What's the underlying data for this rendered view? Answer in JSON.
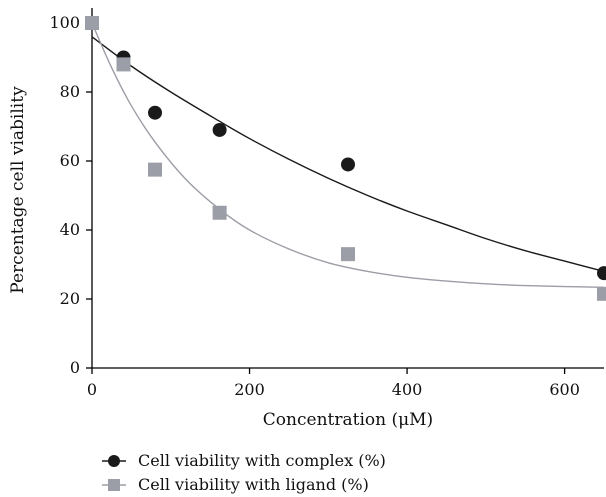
{
  "chart_data": {
    "type": "scatter",
    "title": "",
    "xlabel": "Concentration (μM)",
    "ylabel": "Percentage cell viability",
    "xlim": [
      0,
      650
    ],
    "ylim": [
      0,
      100
    ],
    "x_ticks": [
      "0",
      "200",
      "400",
      "600"
    ],
    "y_ticks": [
      "0",
      "20",
      "40",
      "60",
      "80",
      "100"
    ],
    "grid": false,
    "legend_position": "bottom-left",
    "series": [
      {
        "name": "Cell viability with complex (%)",
        "marker": "circle",
        "color": "#1a1a1a",
        "fit_color": "#1a1a1a",
        "points": [
          [
            0,
            100
          ],
          [
            40,
            90
          ],
          [
            80,
            74
          ],
          [
            162,
            69
          ],
          [
            325,
            59
          ],
          [
            650,
            27.5
          ]
        ],
        "fit": [
          [
            0,
            96
          ],
          [
            50,
            87.5
          ],
          [
            100,
            80
          ],
          [
            162,
            71.5
          ],
          [
            200,
            66.5
          ],
          [
            250,
            60.5
          ],
          [
            300,
            55
          ],
          [
            350,
            50
          ],
          [
            400,
            45.5
          ],
          [
            450,
            41.5
          ],
          [
            500,
            37.5
          ],
          [
            550,
            34
          ],
          [
            600,
            31
          ],
          [
            650,
            28
          ]
        ]
      },
      {
        "name": "Cell viability with ligand (%)",
        "marker": "square",
        "color": "#9b9ea6",
        "fit_color": "#9b9ea6",
        "points": [
          [
            0,
            100
          ],
          [
            40,
            88
          ],
          [
            80,
            57.5
          ],
          [
            162,
            45
          ],
          [
            325,
            33
          ],
          [
            650,
            21.5
          ]
        ],
        "fit": [
          [
            0,
            100
          ],
          [
            25,
            87
          ],
          [
            50,
            76
          ],
          [
            80,
            65.5
          ],
          [
            120,
            54.5
          ],
          [
            162,
            46
          ],
          [
            200,
            40
          ],
          [
            250,
            34.5
          ],
          [
            300,
            30.5
          ],
          [
            350,
            28
          ],
          [
            400,
            26.3
          ],
          [
            450,
            25.2
          ],
          [
            500,
            24.4
          ],
          [
            550,
            23.9
          ],
          [
            600,
            23.6
          ],
          [
            650,
            23.4
          ]
        ]
      }
    ]
  }
}
